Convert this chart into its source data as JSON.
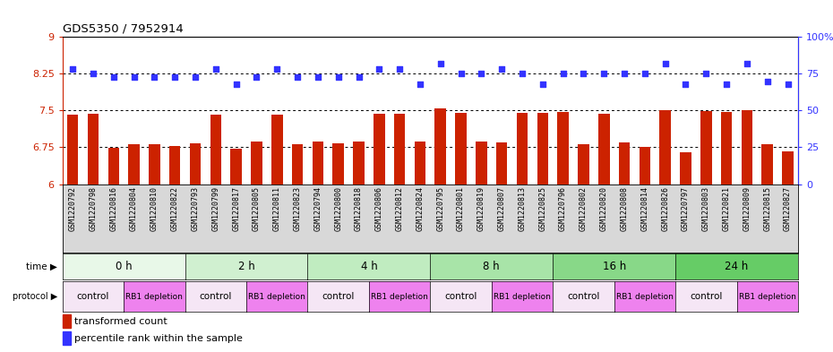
{
  "title": "GDS5350 / 7952914",
  "samples": [
    "GSM1220792",
    "GSM1220798",
    "GSM1220816",
    "GSM1220804",
    "GSM1220810",
    "GSM1220822",
    "GSM1220793",
    "GSM1220799",
    "GSM1220817",
    "GSM1220805",
    "GSM1220811",
    "GSM1220823",
    "GSM1220794",
    "GSM1220800",
    "GSM1220818",
    "GSM1220806",
    "GSM1220812",
    "GSM1220824",
    "GSM1220795",
    "GSM1220801",
    "GSM1220819",
    "GSM1220807",
    "GSM1220813",
    "GSM1220825",
    "GSM1220796",
    "GSM1220802",
    "GSM1220820",
    "GSM1220808",
    "GSM1220814",
    "GSM1220826",
    "GSM1220797",
    "GSM1220803",
    "GSM1220821",
    "GSM1220809",
    "GSM1220815",
    "GSM1220827"
  ],
  "bar_values": [
    7.42,
    7.43,
    6.74,
    6.82,
    6.82,
    6.77,
    6.84,
    7.42,
    6.72,
    6.86,
    7.42,
    6.82,
    6.87,
    6.83,
    6.87,
    7.43,
    7.43,
    6.87,
    7.55,
    7.45,
    6.86,
    6.85,
    7.45,
    7.45,
    7.47,
    6.82,
    7.44,
    6.85,
    6.75,
    7.5,
    6.65,
    7.48,
    7.47,
    7.5,
    6.82,
    6.66
  ],
  "percentile_values": [
    78,
    75,
    73,
    73,
    73,
    73,
    73,
    78,
    68,
    73,
    78,
    73,
    73,
    73,
    73,
    78,
    78,
    68,
    82,
    75,
    75,
    78,
    75,
    68,
    75,
    75,
    75,
    75,
    75,
    82,
    68,
    75,
    68,
    82,
    70,
    68
  ],
  "time_groups": [
    {
      "label": "0 h",
      "start": 0,
      "end": 6,
      "color": "#e8f8e8"
    },
    {
      "label": "2 h",
      "start": 6,
      "end": 12,
      "color": "#d0f0d0"
    },
    {
      "label": "4 h",
      "start": 12,
      "end": 18,
      "color": "#c0ecc0"
    },
    {
      "label": "8 h",
      "start": 18,
      "end": 24,
      "color": "#a8e4a8"
    },
    {
      "label": "16 h",
      "start": 24,
      "end": 30,
      "color": "#88d888"
    },
    {
      "label": "24 h",
      "start": 30,
      "end": 36,
      "color": "#66cc66"
    }
  ],
  "protocol_groups": [
    {
      "label": "control",
      "start": 0,
      "end": 3,
      "color": "#f5e6f5"
    },
    {
      "label": "RB1 depletion",
      "start": 3,
      "end": 6,
      "color": "#ee82ee"
    },
    {
      "label": "control",
      "start": 6,
      "end": 9,
      "color": "#f5e6f5"
    },
    {
      "label": "RB1 depletion",
      "start": 9,
      "end": 12,
      "color": "#ee82ee"
    },
    {
      "label": "control",
      "start": 12,
      "end": 15,
      "color": "#f5e6f5"
    },
    {
      "label": "RB1 depletion",
      "start": 15,
      "end": 18,
      "color": "#ee82ee"
    },
    {
      "label": "control",
      "start": 18,
      "end": 21,
      "color": "#f5e6f5"
    },
    {
      "label": "RB1 depletion",
      "start": 21,
      "end": 24,
      "color": "#ee82ee"
    },
    {
      "label": "control",
      "start": 24,
      "end": 27,
      "color": "#f5e6f5"
    },
    {
      "label": "RB1 depletion",
      "start": 27,
      "end": 30,
      "color": "#ee82ee"
    },
    {
      "label": "control",
      "start": 30,
      "end": 33,
      "color": "#f5e6f5"
    },
    {
      "label": "RB1 depletion",
      "start": 33,
      "end": 36,
      "color": "#ee82ee"
    }
  ],
  "bar_color": "#cc2200",
  "dot_color": "#3333ff",
  "ylim_left": [
    6.0,
    9.0
  ],
  "ylim_right": [
    0,
    100
  ],
  "yticks_left": [
    6.0,
    6.75,
    7.5,
    8.25,
    9.0
  ],
  "yticks_right": [
    0,
    25,
    50,
    75,
    100
  ],
  "hlines": [
    6.75,
    7.5,
    8.25
  ],
  "xtick_bg_color": "#d8d8d8",
  "legend_red_label": "transformed count",
  "legend_blue_label": "percentile rank within the sample"
}
